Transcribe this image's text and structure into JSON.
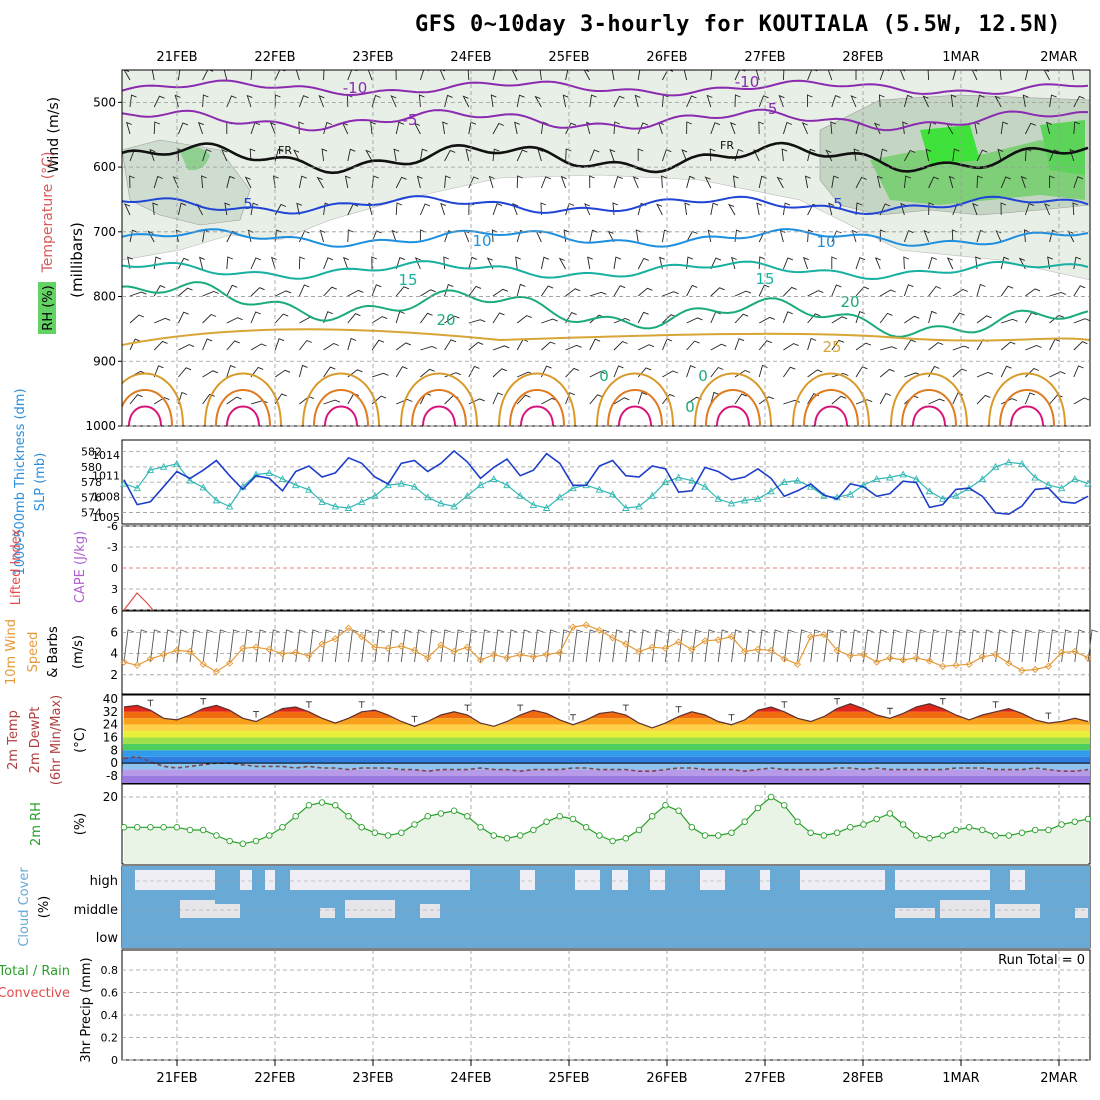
{
  "title": "GFS 0~10day 3-hourly for KOUTIALA (5.5W, 12.5N)",
  "x_axis": {
    "dates": [
      "21FEB",
      "22FEB",
      "23FEB",
      "24FEB",
      "25FEB",
      "26FEB",
      "27FEB",
      "28FEB",
      "1MAR",
      "2MAR"
    ]
  },
  "colors": {
    "grid": "#9a9a9a",
    "rh_light": "#dfe9dc",
    "rh_mid": "#bcd2bf",
    "rh_green": "#65cf63",
    "slp": "#1d3ec9",
    "thickness": "#31b8b4",
    "wind10": "#e49a38",
    "barb": "#555555",
    "rh2m": "#2aa02a",
    "rh2m_fill": "#e9f3e6",
    "cloud": "#68a9d6",
    "cloud_gap": "#f0eef5",
    "cape": "#b05fd0",
    "lifted": "#e24b4b"
  },
  "panels": {
    "upper": {
      "ylabels": [
        "Wind (m/s)",
        "Temperature (°C)",
        "(millibars)",
        "RH (%)"
      ],
      "pressure_ticks": [
        "500",
        "600",
        "700",
        "800",
        "900",
        "1000"
      ],
      "isotherm_labels": [
        "-10",
        "-5",
        "FR",
        "5",
        "10",
        "15",
        "20",
        "25",
        "-10",
        "-5",
        "FR",
        "5",
        "10",
        "15",
        "20",
        "0",
        "0",
        "0"
      ]
    },
    "slp": {
      "ylabel_left": "1000-500mb Thickness (dm)",
      "ylabel_right": "SLP (mb)",
      "left_ticks": [
        "582",
        "580",
        "578",
        "576",
        "574"
      ],
      "right_ticks": [
        "1014",
        "1011",
        "1008",
        "1005"
      ]
    },
    "cape": {
      "ylabel_left": "Lifted Index",
      "ylabel_right": "CAPE (J/kg)",
      "ticks": [
        "-6",
        "-3",
        "0",
        "3",
        "6"
      ]
    },
    "wind10": {
      "ylabel": [
        "10m Wind",
        "Speed",
        "& Barbs"
      ],
      "unit": "(m/s)",
      "ticks": [
        "6",
        "4",
        "2"
      ]
    },
    "temp": {
      "ylabel": [
        "2m Temp",
        "2m DewPt",
        "(6hr Min/Max)"
      ],
      "unit": "(°C)",
      "ticks": [
        "40",
        "32",
        "24",
        "16",
        "8",
        "0",
        "-8"
      ]
    },
    "rh2m": {
      "ylabel": "2m RH",
      "unit": "(%)",
      "ticks": [
        "20"
      ]
    },
    "cloud": {
      "ylabel": "Cloud Cover",
      "unit": "(%)",
      "levels": [
        "high",
        "middle",
        "low"
      ]
    },
    "precip": {
      "ylabel_left": [
        "Total / Rain",
        "Convective"
      ],
      "ylabel_right": "3hr Precip (mm)",
      "ticks": [
        "0.8",
        "0.6",
        "0.4",
        "0.2",
        "0"
      ],
      "run_total": "Run Total = 0"
    }
  },
  "chart_data": [
    {
      "type": "line",
      "title": "1000-500mb Thickness / SLP",
      "series": [
        {
          "name": "1000-500mb Thickness (dm)",
          "values": [
            577.8,
            577.2,
            579.6,
            580.0,
            580.4,
            578.2,
            577.3,
            575.6,
            574.8,
            577.4,
            579.0,
            579.2,
            578.4,
            577.6,
            577.0,
            575.4,
            574.8,
            574.6,
            575.4,
            576.2,
            577.6,
            577.8,
            577.4,
            576.0,
            575.2,
            574.8,
            576.2,
            577.6,
            578.4,
            577.6,
            576.2,
            575.0,
            574.6,
            576.0,
            577.2,
            577.6,
            577.0,
            576.4,
            574.6,
            574.8,
            576.2,
            578.0,
            578.6,
            578.2,
            577.4,
            575.8,
            575.2,
            575.6,
            575.8,
            576.8,
            578.0,
            578.2,
            577.4,
            576.2,
            576.0,
            576.4,
            577.6,
            578.4,
            578.6,
            579.0,
            578.4,
            576.8,
            575.8,
            576.2,
            577.2,
            578.4,
            580.0,
            580.6,
            580.4,
            578.6,
            577.6,
            577.2,
            578.4,
            577.8
          ]
        },
        {
          "name": "SLP (mb)",
          "values": [
            1010.4,
            1006.8,
            1007.2,
            1009.4,
            1011.6,
            1010.6,
            1011.8,
            1013.2,
            1011.0,
            1009.0,
            1011.0,
            1010.6,
            1008.8,
            1011.6,
            1012.4,
            1010.8,
            1011.4,
            1013.6,
            1012.8,
            1010.8,
            1009.8,
            1012.8,
            1013.2,
            1011.6,
            1012.8,
            1014.6,
            1013.0,
            1010.6,
            1012.2,
            1013.4,
            1011.0,
            1011.8,
            1014.2,
            1012.8,
            1009.6,
            1009.6,
            1012.4,
            1013.2,
            1011.0,
            1010.8,
            1012.4,
            1012.0,
            1008.6,
            1008.8,
            1012.2,
            1011.6,
            1010.4,
            1010.8,
            1012.0,
            1010.6,
            1008.0,
            1008.8,
            1009.8,
            1008.2,
            1007.6,
            1009.8,
            1009.4,
            1008.0,
            1008.4,
            1010.2,
            1010.0,
            1006.4,
            1006.8,
            1009.0,
            1009.2,
            1008.0,
            1005.6,
            1005.4,
            1006.6,
            1009.0,
            1009.2,
            1007.2,
            1007.0,
            1008.0
          ]
        }
      ]
    },
    {
      "type": "line",
      "title": "10m Wind Speed",
      "series": [
        {
          "name": "10m Wind Speed (m/s)",
          "values": [
            3.2,
            2.9,
            3.5,
            3.9,
            4.3,
            4.2,
            3.0,
            2.3,
            3.1,
            4.5,
            4.6,
            4.4,
            4.0,
            4.1,
            3.8,
            4.9,
            5.4,
            6.4,
            5.6,
            4.6,
            4.5,
            4.7,
            4.3,
            3.6,
            4.8,
            4.2,
            4.6,
            3.4,
            3.9,
            3.6,
            3.9,
            3.7,
            3.9,
            4.1,
            6.5,
            6.7,
            6.2,
            5.5,
            4.9,
            4.2,
            4.6,
            4.5,
            5.1,
            4.4,
            5.2,
            5.3,
            5.6,
            4.2,
            4.4,
            4.3,
            3.5,
            3.0,
            5.6,
            5.8,
            4.3,
            3.8,
            3.9,
            3.2,
            3.6,
            3.4,
            3.6,
            3.3,
            2.8,
            2.9,
            3.0,
            3.7,
            3.9,
            3.1,
            2.4,
            2.5,
            2.8,
            4.1,
            4.2,
            3.6
          ]
        }
      ]
    },
    {
      "type": "area",
      "title": "2m Temp",
      "series": [
        {
          "name": "2m Temp (°C)",
          "values": [
            35,
            36,
            33,
            28,
            27,
            30,
            34,
            36,
            33,
            28,
            26,
            30,
            34,
            35,
            32,
            28,
            25,
            28,
            32,
            33,
            30,
            26,
            23,
            26,
            30,
            32,
            30,
            25,
            23,
            26,
            30,
            33,
            31,
            27,
            24,
            27,
            31,
            32,
            30,
            25,
            22,
            25,
            29,
            32,
            30,
            26,
            24,
            27,
            33,
            35,
            32,
            28,
            26,
            29,
            34,
            37,
            34,
            30,
            28,
            31,
            35,
            37,
            34,
            30,
            27,
            30,
            32,
            34,
            31,
            27,
            25,
            26,
            28,
            26
          ]
        },
        {
          "name": "2m DewPt (°C)",
          "values": [
            3,
            4,
            1,
            -2,
            -3,
            -2,
            -1,
            0,
            0,
            -1,
            -2,
            -2,
            -2,
            -3,
            -2,
            -3,
            -3,
            -4,
            -3,
            -3,
            -3,
            -4,
            -4,
            -5,
            -4,
            -4,
            -4,
            -3,
            -4,
            -4,
            -5,
            -4,
            -4,
            -4,
            -3,
            -3,
            -4,
            -4,
            -4,
            -5,
            -5,
            -4,
            -3,
            -3,
            -4,
            -4,
            -4,
            -5,
            -4,
            -3,
            -4,
            -4,
            -4,
            -4,
            -3,
            -3,
            -4,
            -3,
            -4,
            -4,
            -4,
            -4,
            -4,
            -3,
            -3,
            -3,
            -4,
            -4,
            -4,
            -3,
            -4,
            -5,
            -5,
            -4
          ]
        }
      ]
    },
    {
      "type": "line",
      "title": "2m RH",
      "series": [
        {
          "name": "2m RH (%)",
          "values": [
            9,
            9,
            9,
            9,
            9,
            8,
            8,
            6,
            4,
            3,
            4,
            6,
            9,
            13,
            17,
            18,
            17,
            13,
            9,
            7,
            6,
            7,
            10,
            13,
            14,
            15,
            13,
            9,
            6,
            5,
            6,
            8,
            11,
            13,
            12,
            9,
            6,
            4,
            5,
            8,
            13,
            17,
            15,
            9,
            6,
            6,
            7,
            11,
            16,
            20,
            17,
            11,
            7,
            6,
            7,
            9,
            10,
            12,
            14,
            10,
            6,
            5,
            6,
            8,
            9,
            8,
            6,
            6,
            7,
            8,
            8,
            10,
            11,
            12
          ]
        }
      ]
    },
    {
      "type": "bar",
      "title": "3hr Precip",
      "ylabel": "3hr Precip (mm)",
      "ylim": [
        0,
        0.9
      ],
      "values": []
    }
  ]
}
